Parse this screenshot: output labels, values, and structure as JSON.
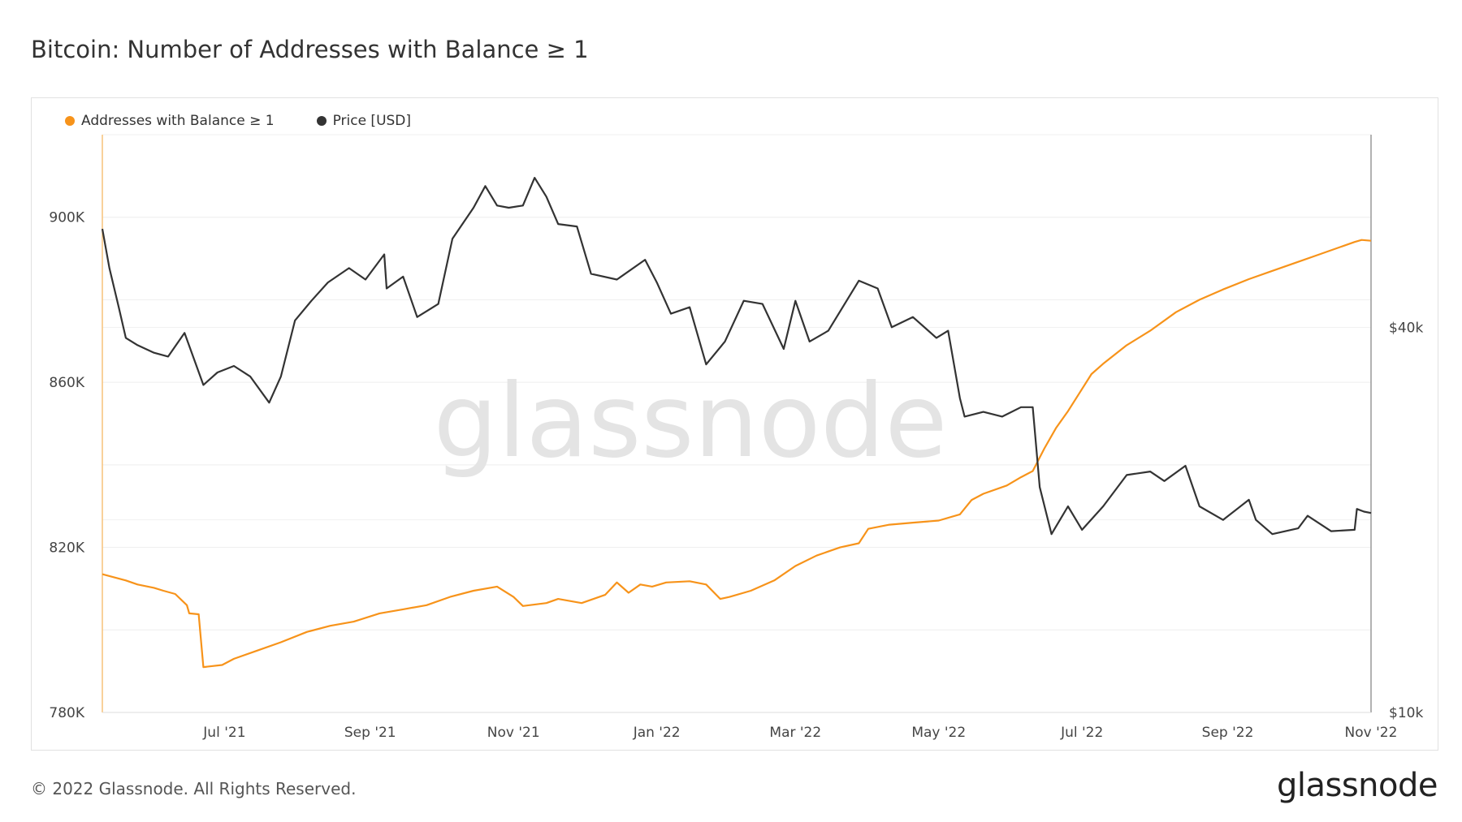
{
  "header": {
    "title": "Bitcoin: Number of Addresses with Balance ≥ 1"
  },
  "legend": {
    "items": [
      {
        "label": "Addresses with Balance ≥ 1",
        "color": "#f7931a"
      },
      {
        "label": "Price [USD]",
        "color": "#333333"
      }
    ]
  },
  "watermark": "glassnode",
  "footer": {
    "copyright": "© 2022 Glassnode. All Rights Reserved.",
    "brand": "glassnode"
  },
  "chart_data": {
    "type": "line",
    "title": "Bitcoin: Number of Addresses with Balance ≥ 1",
    "x_range": [
      "2021-05-10",
      "2022-11-01"
    ],
    "x_ticks": [
      {
        "date": "2021-07-01",
        "label": "Jul '21"
      },
      {
        "date": "2021-09-01",
        "label": "Sep '21"
      },
      {
        "date": "2021-11-01",
        "label": "Nov '21"
      },
      {
        "date": "2022-01-01",
        "label": "Jan '22"
      },
      {
        "date": "2022-03-01",
        "label": "Mar '22"
      },
      {
        "date": "2022-05-01",
        "label": "May '22"
      },
      {
        "date": "2022-07-01",
        "label": "Jul '22"
      },
      {
        "date": "2022-09-01",
        "label": "Sep '22"
      },
      {
        "date": "2022-11-01",
        "label": "Nov '22"
      }
    ],
    "y_left": {
      "range": [
        780000,
        920000
      ],
      "ticks": [
        {
          "value": 780000,
          "label": "780K"
        },
        {
          "value": 820000,
          "label": "820K"
        },
        {
          "value": 860000,
          "label": "860K"
        },
        {
          "value": 900000,
          "label": "900K"
        }
      ]
    },
    "y_right": {
      "scale": "log",
      "range": [
        10000,
        80000
      ],
      "ticks": [
        {
          "value": 10000,
          "label": "$10k"
        },
        {
          "value": 40000,
          "label": "$40k"
        }
      ]
    },
    "series": [
      {
        "name": "Addresses with Balance ≥ 1",
        "axis": "left",
        "color": "#f7931a",
        "points": [
          [
            "2021-05-10",
            813500
          ],
          [
            "2021-05-20",
            812000
          ],
          [
            "2021-05-25",
            811000
          ],
          [
            "2021-06-01",
            810200
          ],
          [
            "2021-06-05",
            809500
          ],
          [
            "2021-06-10",
            808700
          ],
          [
            "2021-06-15",
            806000
          ],
          [
            "2021-06-16",
            804000
          ],
          [
            "2021-06-20",
            803800
          ],
          [
            "2021-06-22",
            791000
          ],
          [
            "2021-06-30",
            791500
          ],
          [
            "2021-07-05",
            793000
          ],
          [
            "2021-07-15",
            795000
          ],
          [
            "2021-07-25",
            797000
          ],
          [
            "2021-08-05",
            799500
          ],
          [
            "2021-08-15",
            801000
          ],
          [
            "2021-08-25",
            802000
          ],
          [
            "2021-09-05",
            804000
          ],
          [
            "2021-09-15",
            805000
          ],
          [
            "2021-09-25",
            806000
          ],
          [
            "2021-10-05",
            808000
          ],
          [
            "2021-10-15",
            809500
          ],
          [
            "2021-10-25",
            810500
          ],
          [
            "2021-11-01",
            808000
          ],
          [
            "2021-11-05",
            805800
          ],
          [
            "2021-11-15",
            806500
          ],
          [
            "2021-11-20",
            807500
          ],
          [
            "2021-11-30",
            806500
          ],
          [
            "2021-12-10",
            808500
          ],
          [
            "2021-12-15",
            811500
          ],
          [
            "2021-12-20",
            809000
          ],
          [
            "2021-12-25",
            811000
          ],
          [
            "2021-12-30",
            810500
          ],
          [
            "2022-01-05",
            811500
          ],
          [
            "2022-01-15",
            811800
          ],
          [
            "2022-01-22",
            811000
          ],
          [
            "2022-01-28",
            807500
          ],
          [
            "2022-02-01",
            808000
          ],
          [
            "2022-02-10",
            809500
          ],
          [
            "2022-02-20",
            812000
          ],
          [
            "2022-03-01",
            815500
          ],
          [
            "2022-03-10",
            818000
          ],
          [
            "2022-03-20",
            820000
          ],
          [
            "2022-03-28",
            821000
          ],
          [
            "2022-04-01",
            824500
          ],
          [
            "2022-04-10",
            825500
          ],
          [
            "2022-04-20",
            826000
          ],
          [
            "2022-05-01",
            826500
          ],
          [
            "2022-05-10",
            828000
          ],
          [
            "2022-05-15",
            831500
          ],
          [
            "2022-05-20",
            833000
          ],
          [
            "2022-05-30",
            835000
          ],
          [
            "2022-06-05",
            837000
          ],
          [
            "2022-06-10",
            838500
          ],
          [
            "2022-06-15",
            844000
          ],
          [
            "2022-06-20",
            849000
          ],
          [
            "2022-06-25",
            853000
          ],
          [
            "2022-06-30",
            857500
          ],
          [
            "2022-07-05",
            862000
          ],
          [
            "2022-07-10",
            864500
          ],
          [
            "2022-07-20",
            869000
          ],
          [
            "2022-07-30",
            872500
          ],
          [
            "2022-08-10",
            877000
          ],
          [
            "2022-08-20",
            880000
          ],
          [
            "2022-08-30",
            882500
          ],
          [
            "2022-09-10",
            885000
          ],
          [
            "2022-09-20",
            887000
          ],
          [
            "2022-09-30",
            889000
          ],
          [
            "2022-10-10",
            891000
          ],
          [
            "2022-10-20",
            893000
          ],
          [
            "2022-10-25",
            894000
          ],
          [
            "2022-10-28",
            894500
          ],
          [
            "2022-11-01",
            894300
          ]
        ]
      },
      {
        "name": "Price [USD]",
        "axis": "right",
        "color": "#333333",
        "points": [
          [
            "2021-05-10",
            57000
          ],
          [
            "2021-05-13",
            49500
          ],
          [
            "2021-05-17",
            43000
          ],
          [
            "2021-05-20",
            38500
          ],
          [
            "2021-05-25",
            37500
          ],
          [
            "2021-06-01",
            36500
          ],
          [
            "2021-06-07",
            36000
          ],
          [
            "2021-06-14",
            39200
          ],
          [
            "2021-06-22",
            32500
          ],
          [
            "2021-06-28",
            34000
          ],
          [
            "2021-07-05",
            34800
          ],
          [
            "2021-07-12",
            33500
          ],
          [
            "2021-07-20",
            30500
          ],
          [
            "2021-07-25",
            33500
          ],
          [
            "2021-07-31",
            41000
          ],
          [
            "2021-08-07",
            44000
          ],
          [
            "2021-08-14",
            47000
          ],
          [
            "2021-08-23",
            49500
          ],
          [
            "2021-08-30",
            47500
          ],
          [
            "2021-09-07",
            52000
          ],
          [
            "2021-09-08",
            46000
          ],
          [
            "2021-09-15",
            48000
          ],
          [
            "2021-09-21",
            41500
          ],
          [
            "2021-09-30",
            43500
          ],
          [
            "2021-10-06",
            55000
          ],
          [
            "2021-10-15",
            61500
          ],
          [
            "2021-10-20",
            66500
          ],
          [
            "2021-10-25",
            62000
          ],
          [
            "2021-10-30",
            61500
          ],
          [
            "2021-11-05",
            62000
          ],
          [
            "2021-11-10",
            68500
          ],
          [
            "2021-11-15",
            64000
          ],
          [
            "2021-11-20",
            58000
          ],
          [
            "2021-11-28",
            57500
          ],
          [
            "2021-12-04",
            48500
          ],
          [
            "2021-12-15",
            47500
          ],
          [
            "2021-12-27",
            51000
          ],
          [
            "2022-01-01",
            47000
          ],
          [
            "2022-01-07",
            42000
          ],
          [
            "2022-01-15",
            43000
          ],
          [
            "2022-01-22",
            35000
          ],
          [
            "2022-01-30",
            38000
          ],
          [
            "2022-02-07",
            44000
          ],
          [
            "2022-02-15",
            43500
          ],
          [
            "2022-02-24",
            37000
          ],
          [
            "2022-03-01",
            44000
          ],
          [
            "2022-03-07",
            38000
          ],
          [
            "2022-03-15",
            39500
          ],
          [
            "2022-03-28",
            47300
          ],
          [
            "2022-04-05",
            46000
          ],
          [
            "2022-04-11",
            40000
          ],
          [
            "2022-04-20",
            41500
          ],
          [
            "2022-04-30",
            38500
          ],
          [
            "2022-05-05",
            39500
          ],
          [
            "2022-05-10",
            31000
          ],
          [
            "2022-05-12",
            29000
          ],
          [
            "2022-05-20",
            29500
          ],
          [
            "2022-05-28",
            29000
          ],
          [
            "2022-06-05",
            30000
          ],
          [
            "2022-06-10",
            30000
          ],
          [
            "2022-06-13",
            22500
          ],
          [
            "2022-06-18",
            19000
          ],
          [
            "2022-06-25",
            21000
          ],
          [
            "2022-07-01",
            19300
          ],
          [
            "2022-07-10",
            21000
          ],
          [
            "2022-07-20",
            23500
          ],
          [
            "2022-07-30",
            23800
          ],
          [
            "2022-08-05",
            23000
          ],
          [
            "2022-08-14",
            24300
          ],
          [
            "2022-08-20",
            21000
          ],
          [
            "2022-08-30",
            20000
          ],
          [
            "2022-09-10",
            21500
          ],
          [
            "2022-09-13",
            20000
          ],
          [
            "2022-09-20",
            19000
          ],
          [
            "2022-10-01",
            19400
          ],
          [
            "2022-10-05",
            20300
          ],
          [
            "2022-10-15",
            19200
          ],
          [
            "2022-10-25",
            19300
          ],
          [
            "2022-10-26",
            20800
          ],
          [
            "2022-10-29",
            20600
          ],
          [
            "2022-11-01",
            20500
          ]
        ]
      }
    ]
  }
}
